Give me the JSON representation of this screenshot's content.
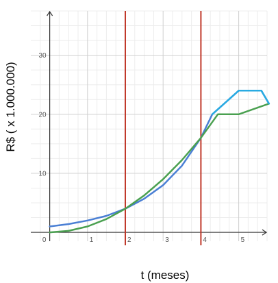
{
  "chart_data": {
    "type": "line",
    "xlabel": "t (meses)",
    "ylabel": "R$ ( x 1.000.000)",
    "xlim": [
      -0.5,
      5.75
    ],
    "ylim": [
      -1.5,
      37.5
    ],
    "x_ticks": [
      "0",
      "1",
      "2",
      "3",
      "4",
      "5"
    ],
    "y_ticks": [
      "10",
      "20",
      "30"
    ],
    "grid": true,
    "vertical_lines": [
      {
        "x": 2,
        "color": "#c0392b"
      },
      {
        "x": 4,
        "color": "#c0392b"
      }
    ],
    "series": [
      {
        "color": "#4a7fd4",
        "points": [
          [
            0,
            1.0
          ],
          [
            0.5,
            1.4
          ],
          [
            1,
            2.0
          ],
          [
            1.5,
            2.8
          ],
          [
            2,
            4.0
          ],
          [
            2.5,
            5.7
          ],
          [
            3,
            8.0
          ],
          [
            3.5,
            11.3
          ],
          [
            4,
            16.0
          ],
          [
            4.3,
            20.0
          ],
          [
            5,
            24.0
          ],
          [
            5.6,
            24.0
          ],
          [
            5.8,
            21.8
          ]
        ]
      },
      {
        "color": "#4aa050",
        "points": [
          [
            0,
            0.0
          ],
          [
            0.5,
            0.25
          ],
          [
            1,
            1.0
          ],
          [
            1.5,
            2.25
          ],
          [
            2,
            4.0
          ],
          [
            2.5,
            6.25
          ],
          [
            3,
            9.0
          ],
          [
            3.5,
            12.25
          ],
          [
            4,
            16.0
          ],
          [
            4.45,
            20.0
          ],
          [
            5,
            20.0
          ],
          [
            5.8,
            21.8
          ]
        ]
      },
      {
        "color": "#29abe2",
        "points": [
          [
            4.3,
            20.0
          ],
          [
            5,
            24.0
          ],
          [
            5.6,
            24.0
          ],
          [
            5.8,
            21.8
          ]
        ]
      }
    ]
  }
}
